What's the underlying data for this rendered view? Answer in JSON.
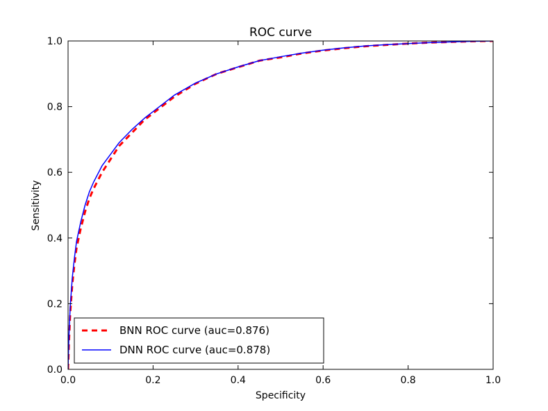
{
  "chart_data": {
    "type": "line",
    "title": "ROC curve",
    "xlabel": "Specificity",
    "ylabel": "Sensitivity",
    "xlim": [
      0.0,
      1.0
    ],
    "ylim": [
      0.0,
      1.0
    ],
    "xticks": [
      "0.0",
      "0.2",
      "0.4",
      "0.6",
      "0.8",
      "1.0"
    ],
    "yticks": [
      "0.0",
      "0.2",
      "0.4",
      "0.6",
      "0.8",
      "1.0"
    ],
    "grid": false,
    "legend_position": "lower-left",
    "series": [
      {
        "name": "BNN ROC curve (auc=0.876)",
        "color": "#ff0000",
        "style": "dashed",
        "x": [
          0.0,
          0.002,
          0.005,
          0.01,
          0.015,
          0.02,
          0.03,
          0.04,
          0.05,
          0.06,
          0.08,
          0.1,
          0.12,
          0.15,
          0.18,
          0.2,
          0.25,
          0.3,
          0.35,
          0.4,
          0.45,
          0.5,
          0.55,
          0.6,
          0.65,
          0.7,
          0.75,
          0.8,
          0.85,
          0.9,
          0.95,
          1.0
        ],
        "y": [
          0.0,
          0.08,
          0.17,
          0.26,
          0.32,
          0.37,
          0.43,
          0.48,
          0.52,
          0.55,
          0.6,
          0.64,
          0.68,
          0.72,
          0.76,
          0.78,
          0.83,
          0.87,
          0.9,
          0.92,
          0.94,
          0.95,
          0.962,
          0.971,
          0.978,
          0.984,
          0.988,
          0.992,
          0.995,
          0.997,
          0.999,
          1.0
        ]
      },
      {
        "name": "DNN ROC curve (auc=0.878)",
        "color": "#0000ff",
        "style": "solid",
        "x": [
          0.0,
          0.002,
          0.005,
          0.01,
          0.015,
          0.02,
          0.03,
          0.04,
          0.05,
          0.06,
          0.08,
          0.1,
          0.12,
          0.15,
          0.18,
          0.2,
          0.25,
          0.3,
          0.35,
          0.4,
          0.45,
          0.5,
          0.55,
          0.6,
          0.65,
          0.7,
          0.75,
          0.8,
          0.85,
          0.9,
          0.95,
          1.0
        ],
        "y": [
          0.0,
          0.1,
          0.19,
          0.28,
          0.34,
          0.39,
          0.45,
          0.5,
          0.54,
          0.57,
          0.62,
          0.655,
          0.69,
          0.73,
          0.765,
          0.785,
          0.835,
          0.872,
          0.9,
          0.921,
          0.94,
          0.952,
          0.963,
          0.972,
          0.979,
          0.985,
          0.989,
          0.992,
          0.995,
          0.997,
          0.999,
          1.0
        ]
      }
    ]
  }
}
